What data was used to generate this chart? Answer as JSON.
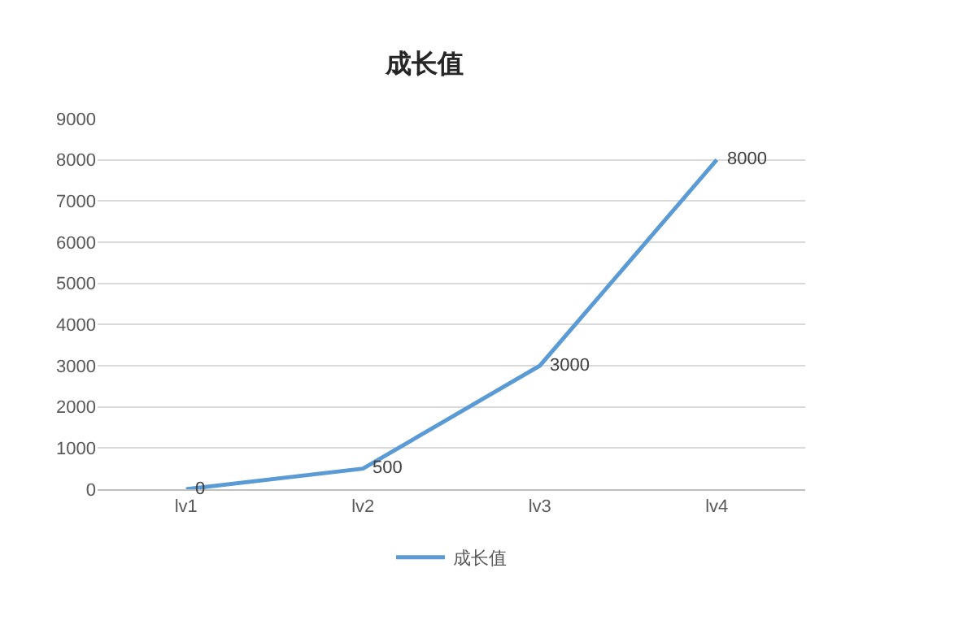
{
  "chart_data": {
    "type": "line",
    "title": "成长值",
    "categories": [
      "lv1",
      "lv2",
      "lv3",
      "lv4"
    ],
    "series": [
      {
        "name": "成长值",
        "color": "#5b9bd5",
        "values": [
          0,
          500,
          3000,
          8000
        ]
      }
    ],
    "ylim": [
      0,
      9000
    ],
    "yticks": [
      0,
      1000,
      2000,
      3000,
      4000,
      5000,
      6000,
      7000,
      8000,
      9000
    ],
    "grid": "y",
    "legend": "bottom",
    "marker": "none",
    "line_style": "solid",
    "data_labels": true
  }
}
